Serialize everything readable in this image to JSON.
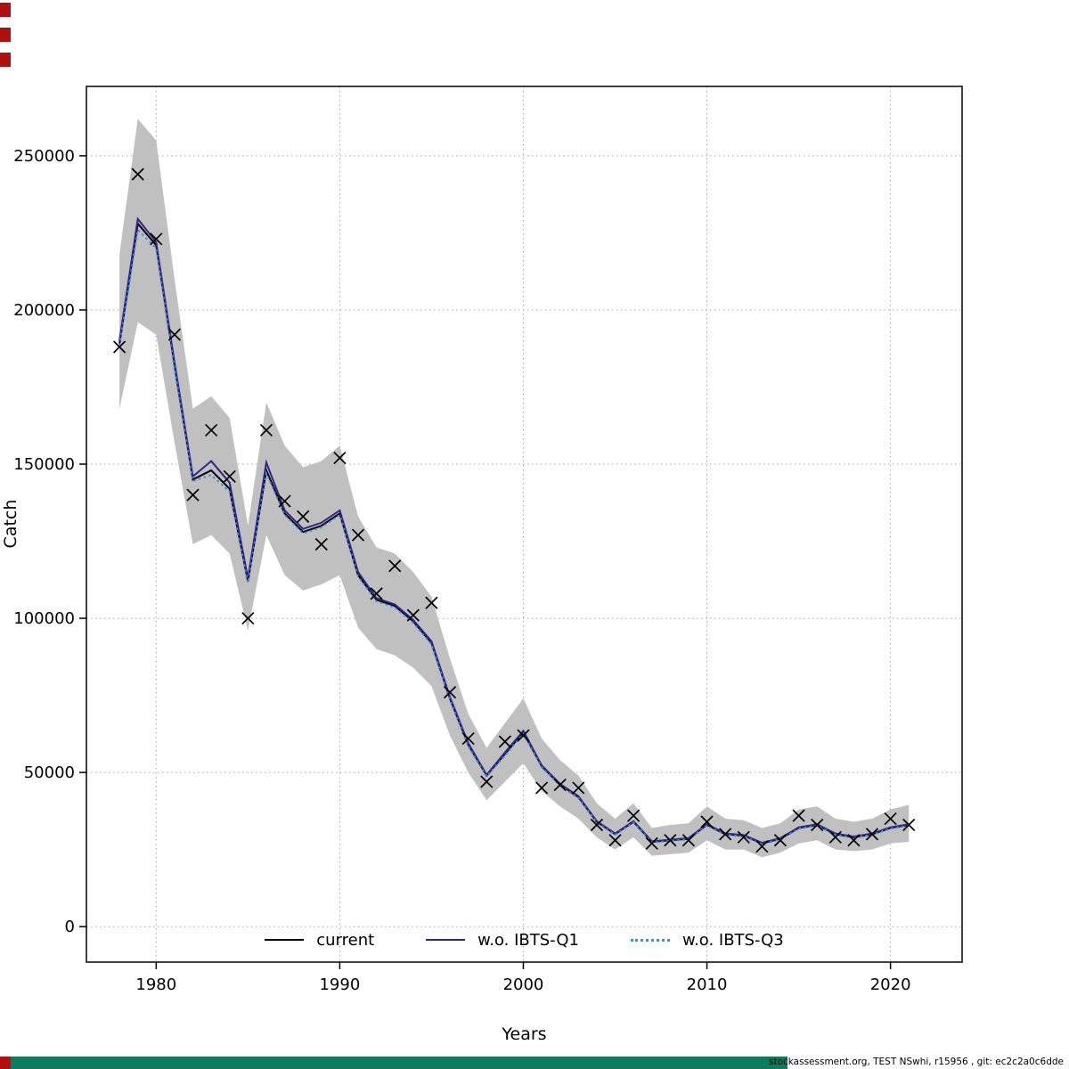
{
  "page": {
    "footer": {
      "credit": "stockassessment.org, TEST NSwhi, r15956 , git: ec2c2a0c6dde"
    },
    "colors": {
      "red_marker": "#b01010",
      "footer_band": "#0e7a5e"
    }
  },
  "chart_data": {
    "type": "line",
    "title": "",
    "xlabel": "Years",
    "ylabel": "Catch",
    "grid": true,
    "legend_position": "bottom-inside",
    "x_range": [
      1976.2,
      2023.9
    ],
    "y_range": [
      -11500,
      272500
    ],
    "x_ticks": [
      1980,
      1990,
      2000,
      2010,
      2020
    ],
    "y_ticks": [
      0,
      50000,
      100000,
      150000,
      200000,
      250000
    ],
    "grid_color": "#a6a6a6",
    "years": [
      1978,
      1979,
      1980,
      1981,
      1982,
      1983,
      1984,
      1985,
      1986,
      1987,
      1988,
      1989,
      1990,
      1991,
      1992,
      1993,
      1994,
      1995,
      1996,
      1997,
      1998,
      1999,
      2000,
      2001,
      2002,
      2003,
      2004,
      2005,
      2006,
      2007,
      2008,
      2009,
      2010,
      2011,
      2012,
      2013,
      2014,
      2015,
      2016,
      2017,
      2018,
      2019,
      2020,
      2021
    ],
    "band": {
      "color": "#c0c0c0",
      "lower": [
        168000,
        196000,
        192000,
        157000,
        124000,
        127000,
        121000,
        96000,
        127000,
        114000,
        109000,
        111000,
        114000,
        97000,
        90000,
        88000,
        84000,
        78000,
        62000,
        50000,
        41000,
        47000,
        53000,
        44000,
        39000,
        35000,
        29000,
        25000,
        29000,
        23000,
        23500,
        24000,
        28000,
        25000,
        25000,
        22500,
        24000,
        27000,
        28000,
        25000,
        24500,
        25000,
        27000,
        27500
      ],
      "upper": [
        218000,
        262000,
        255000,
        210000,
        168000,
        172000,
        165000,
        130000,
        170000,
        156000,
        149000,
        151000,
        156000,
        133000,
        123000,
        121000,
        115000,
        107000,
        87000,
        69000,
        58000,
        66000,
        74000,
        61000,
        54000,
        49000,
        40000,
        35000,
        40000,
        32000,
        33000,
        33500,
        39000,
        35000,
        34500,
        32000,
        33500,
        38000,
        39000,
        35000,
        34000,
        35000,
        38000,
        39500
      ]
    },
    "series": [
      {
        "name": "current",
        "color": "#000000",
        "style": "solid",
        "values": [
          189000,
          228000,
          221000,
          182000,
          145000,
          148000,
          142000,
          112000,
          148000,
          134000,
          128000,
          130000,
          134000,
          114000,
          106000,
          104000,
          99000,
          92000,
          74000,
          59000,
          49000,
          56000,
          63000,
          52000,
          46000,
          42000,
          34000,
          30000,
          34000,
          27500,
          28000,
          28500,
          33000,
          30000,
          29500,
          27000,
          28500,
          32000,
          33000,
          30000,
          29000,
          30000,
          32000,
          33000
        ]
      },
      {
        "name": "w.o. IBTS-Q1",
        "color": "#332288",
        "style": "solid",
        "values": [
          190000,
          229500,
          222000,
          183000,
          146000,
          151000,
          144000,
          113000,
          150500,
          135000,
          129000,
          131000,
          135000,
          115000,
          106500,
          104500,
          99500,
          92500,
          74500,
          59500,
          49200,
          56500,
          63500,
          52300,
          46300,
          42300,
          34200,
          30200,
          34200,
          27700,
          28200,
          28700,
          33200,
          30200,
          29700,
          27200,
          28700,
          32200,
          33200,
          30200,
          29200,
          30200,
          32200,
          33200
        ]
      },
      {
        "name": "w.o. IBTS-Q3",
        "color": "#3d8fd1",
        "style": "dotted",
        "values": [
          188500,
          226000,
          220000,
          181000,
          144500,
          146500,
          141000,
          111500,
          147000,
          133500,
          127500,
          129500,
          133500,
          113500,
          105500,
          103500,
          98500,
          91500,
          73500,
          58500,
          48700,
          55500,
          62500,
          51700,
          45700,
          41700,
          33800,
          29800,
          33800,
          27300,
          27800,
          28300,
          32800,
          29800,
          29300,
          26800,
          28300,
          31800,
          32800,
          29800,
          28800,
          29800,
          31800,
          32800
        ]
      }
    ],
    "markers": {
      "symbol": "x",
      "color": "#000000",
      "values": [
        188000,
        244000,
        223000,
        192000,
        140000,
        161000,
        146000,
        100000,
        161000,
        138000,
        133000,
        124000,
        152000,
        127000,
        108000,
        117000,
        101000,
        105000,
        76000,
        61000,
        47000,
        60000,
        62000,
        45000,
        46000,
        45000,
        33000,
        28000,
        36000,
        27000,
        28000,
        28000,
        34000,
        30000,
        29000,
        26000,
        28000,
        36000,
        33000,
        29000,
        28000,
        30000,
        35000,
        33000
      ]
    }
  }
}
